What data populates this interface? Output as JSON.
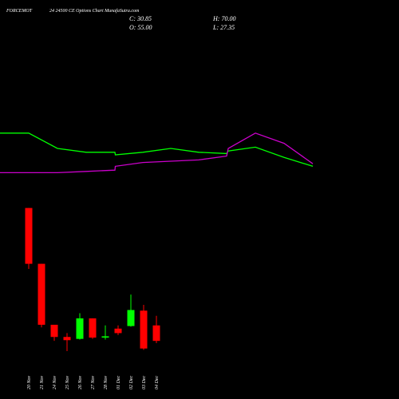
{
  "header": {
    "symbol": "FORCEMOT",
    "title": "24 24500 CE Options Chart MunafaSutra.com",
    "close_text": "C: 30.85",
    "open_text": "O: 55.00",
    "high_text": "H: 70.00",
    "low_text": "L: 27.35"
  },
  "colors": {
    "background": "#000000",
    "up": "#00ff00",
    "down": "#ff0000",
    "line_green": "#00ff00",
    "line_magenta": "#cc00cc",
    "text": "#ffffff"
  },
  "chart_data": {
    "type": "candlestick",
    "title": "24 24500 CE Options Chart MunafaSutra.com",
    "categories": [
      "20 Nov",
      "21 Nov",
      "24 Nov",
      "25 Nov",
      "26 Nov",
      "27 Nov",
      "28 Nov",
      "01 Dec",
      "02 Dec",
      "03 Dec",
      "04 Dec"
    ],
    "candles": [
      {
        "date": "20 Nov",
        "open": 238,
        "high": 238,
        "low": 143,
        "close": 151
      },
      {
        "date": "21 Nov",
        "open": 151,
        "high": 151,
        "low": 52,
        "close": 56
      },
      {
        "date": "24 Nov",
        "open": 56,
        "high": 56,
        "low": 31,
        "close": 37
      },
      {
        "date": "25 Nov",
        "open": 37,
        "high": 43,
        "low": 15,
        "close": 32
      },
      {
        "date": "26 Nov",
        "open": 34,
        "high": 74,
        "low": 33,
        "close": 66
      },
      {
        "date": "27 Nov",
        "open": 66,
        "high": 66,
        "low": 34,
        "close": 36
      },
      {
        "date": "28 Nov",
        "open": 36,
        "high": 55,
        "low": 33,
        "close": 38
      },
      {
        "date": "01 Dec",
        "open": 50,
        "high": 55,
        "low": 40,
        "close": 43
      },
      {
        "date": "02 Dec",
        "open": 54,
        "high": 103,
        "low": 53,
        "close": 79
      },
      {
        "date": "03 Dec",
        "open": 78,
        "high": 87,
        "low": 17,
        "close": 19
      },
      {
        "date": "04 Dec",
        "open": 55,
        "high": 70,
        "low": 27.35,
        "close": 30.85
      }
    ],
    "line_series": [
      {
        "color": "#00ff00",
        "values": [
          0.52,
          0.52,
          0.4,
          0.37,
          0.37,
          0.35,
          0.37,
          0.4,
          0.37,
          0.36,
          0.38,
          0.41,
          0.33,
          0.26
        ]
      },
      {
        "color": "#cc00cc",
        "values": [
          0.21,
          0.21,
          0.21,
          0.22,
          0.23,
          0.26,
          0.29,
          0.3,
          0.31,
          0.34,
          0.4,
          0.52,
          0.44,
          0.28
        ]
      }
    ]
  }
}
